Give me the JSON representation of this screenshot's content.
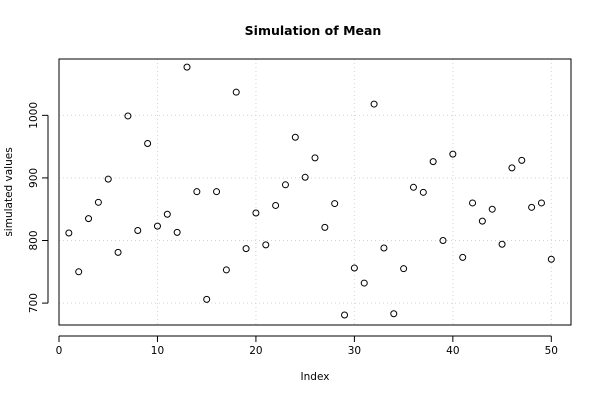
{
  "chart_data": {
    "type": "scatter",
    "title": "Simulation of Mean",
    "xlabel": "Index",
    "ylabel": "simulated values",
    "xlim": [
      0,
      52
    ],
    "ylim": [
      665,
      1090
    ],
    "xticks": [
      0,
      10,
      20,
      30,
      40,
      50
    ],
    "yticks": [
      700,
      800,
      900,
      1000
    ],
    "grid": true,
    "marker": "open-circle",
    "point_color": "#000000",
    "grid_color": "#d3d3d3",
    "x": [
      1,
      2,
      3,
      4,
      5,
      6,
      7,
      8,
      9,
      10,
      11,
      12,
      13,
      14,
      15,
      16,
      17,
      18,
      19,
      20,
      21,
      22,
      23,
      24,
      25,
      26,
      27,
      28,
      29,
      30,
      31,
      32,
      33,
      34,
      35,
      36,
      37,
      38,
      39,
      40,
      41,
      42,
      43,
      44,
      45,
      46,
      47,
      48,
      49,
      50
    ],
    "y": [
      812,
      750,
      835,
      861,
      898,
      781,
      999,
      816,
      955,
      823,
      842,
      813,
      1077,
      878,
      706,
      878,
      753,
      1037,
      787,
      844,
      793,
      856,
      889,
      965,
      901,
      932,
      821,
      859,
      681,
      756,
      732,
      1018,
      788,
      683,
      755,
      885,
      877,
      926,
      800,
      938,
      773,
      860,
      831,
      850,
      794,
      916,
      928,
      853,
      860,
      770
    ]
  }
}
